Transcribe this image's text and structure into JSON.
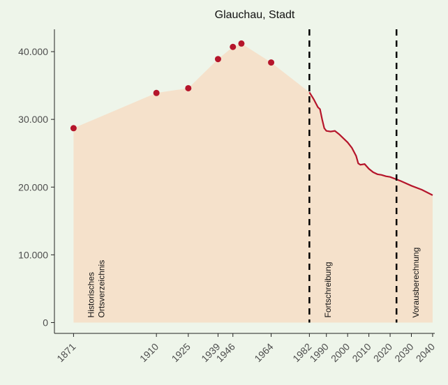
{
  "chart_data": {
    "type": "area",
    "title": "Glauchau, Stadt",
    "xlim": [
      1862,
      2041
    ],
    "ylim": [
      -1600,
      43300
    ],
    "xticks": [
      1871,
      1910,
      1925,
      1939,
      1946,
      1964,
      1982,
      1990,
      2000,
      2010,
      2020,
      2030,
      2040
    ],
    "yticks": [
      0,
      {
        "value": 10000,
        "label": "10.000"
      },
      {
        "value": 20000,
        "label": "20.000"
      },
      {
        "value": 30000,
        "label": "30.000"
      },
      {
        "value": 40000,
        "label": "40.000"
      }
    ],
    "area_color": "#f5e1cb",
    "vlines": [
      1982,
      2023
    ],
    "series": [
      {
        "style": "points",
        "color": "#b5152b",
        "x": [
          1871,
          1910,
          1925,
          1939,
          1946,
          1950,
          1964
        ],
        "values": [
          28700,
          33900,
          34600,
          38900,
          40700,
          41200,
          38400
        ]
      },
      {
        "style": "line",
        "color": "#b5152b",
        "x": [
          1982,
          1984,
          1986,
          1987,
          1988,
          1989,
          1990,
          1992,
          1994,
          1996,
          1998,
          2000,
          2002,
          2004,
          2005,
          2006,
          2008,
          2010,
          2012,
          2014,
          2016,
          2018,
          2020,
          2025,
          2030,
          2035,
          2040
        ],
        "values": [
          34000,
          33000,
          31800,
          31500,
          30000,
          28700,
          28300,
          28200,
          28300,
          27800,
          27200,
          26600,
          25800,
          24600,
          23500,
          23300,
          23400,
          22700,
          22200,
          21900,
          21800,
          21600,
          21500,
          20900,
          20200,
          19600,
          18800
        ]
      }
    ],
    "annotations": [
      {
        "lines": [
          "Historisches",
          "Ortsverzeichnis"
        ]
      },
      {
        "lines": [
          "Fortschreibung"
        ]
      },
      {
        "lines": [
          "Vorausberechnung"
        ]
      }
    ]
  }
}
